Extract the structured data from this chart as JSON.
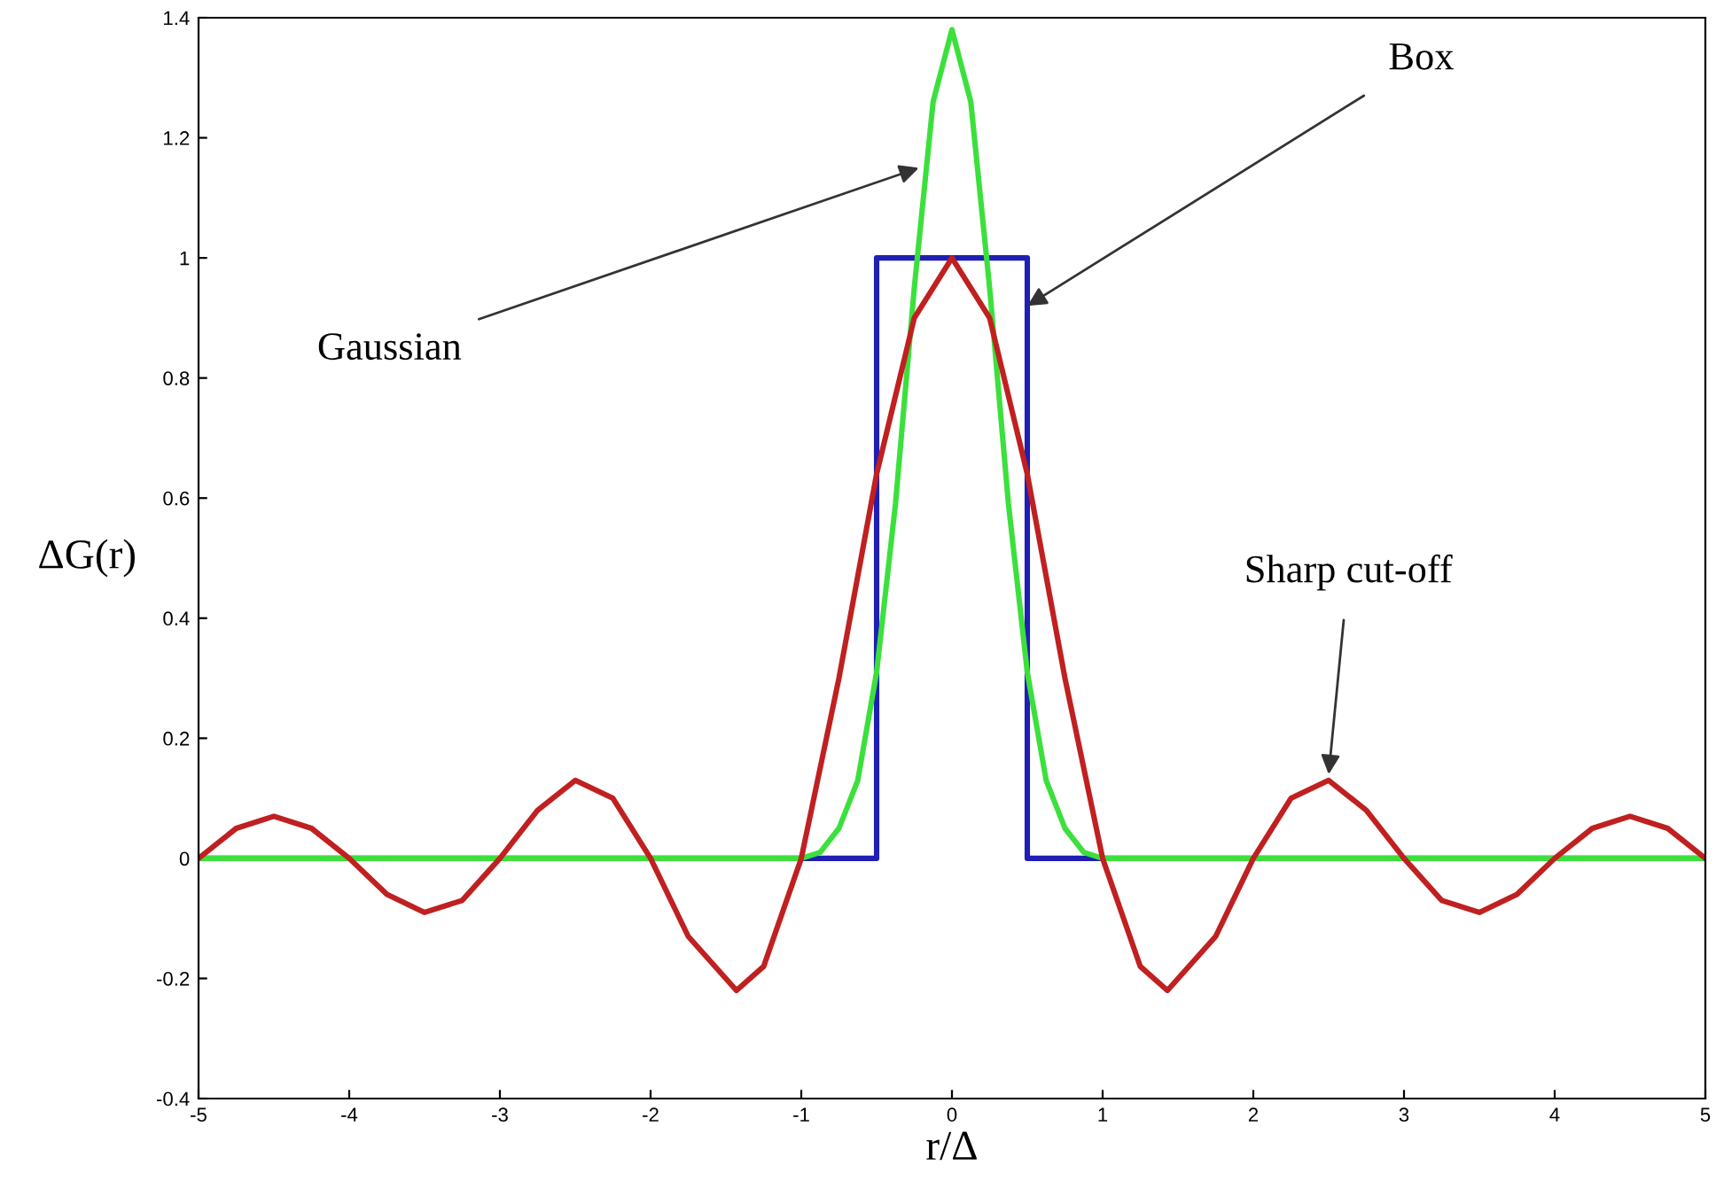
{
  "chart_data": {
    "type": "line",
    "xlabel": "r/Δ",
    "ylabel": "ΔG(r)",
    "xlim": [
      -5,
      5
    ],
    "xticks": [
      -5,
      -4,
      -3,
      -2,
      -1,
      0,
      1,
      2,
      3,
      4,
      5
    ],
    "ylim": [
      -0.4,
      1.4
    ],
    "yticks": [
      -0.4,
      -0.2,
      0,
      0.2,
      0.4,
      0.6,
      0.8,
      1,
      1.2,
      1.4
    ],
    "grid": false,
    "marker": "none",
    "line_style": "solid",
    "series": [
      {
        "type": "step",
        "color": "#1f1fb4",
        "x": [
          -5,
          -0.5,
          0.5,
          5
        ],
        "values": [
          0,
          1,
          0,
          0
        ]
      },
      {
        "color": "#3ce03c",
        "x": [
          -5,
          -1,
          -0.875,
          -0.75,
          -0.625,
          -0.5,
          -0.375,
          -0.25,
          -0.125,
          0,
          0.125,
          0.25,
          0.375,
          0.5,
          0.625,
          0.75,
          0.875,
          1,
          5
        ],
        "values": [
          0,
          0,
          0.01,
          0.05,
          0.13,
          0.31,
          0.59,
          0.95,
          1.26,
          1.38,
          1.26,
          0.95,
          0.59,
          0.31,
          0.13,
          0.05,
          0.01,
          0,
          0
        ]
      },
      {
        "color": "#c02020",
        "x": [
          -5,
          -4.75,
          -4.5,
          -4.25,
          -4,
          -3.75,
          -3.5,
          -3.25,
          -3,
          -2.75,
          -2.5,
          -2.25,
          -2,
          -1.75,
          -1.43,
          -1.25,
          -1,
          -0.75,
          -0.5,
          -0.25,
          0,
          0.25,
          0.5,
          0.75,
          1,
          1.25,
          1.43,
          1.75,
          2,
          2.25,
          2.5,
          2.75,
          3,
          3.25,
          3.5,
          3.75,
          4,
          4.25,
          4.5,
          4.75,
          5
        ],
        "values": [
          0,
          0.05,
          0.07,
          0.05,
          0,
          -0.06,
          -0.09,
          -0.07,
          0,
          0.08,
          0.13,
          0.1,
          0,
          -0.13,
          -0.22,
          -0.18,
          0,
          0.3,
          0.64,
          0.9,
          1,
          0.9,
          0.64,
          0.3,
          0,
          -0.18,
          -0.22,
          -0.13,
          0,
          0.1,
          0.13,
          0.08,
          0,
          -0.07,
          -0.09,
          -0.06,
          0,
          0.05,
          0.07,
          0.05,
          0
        ]
      }
    ],
    "annotations": [
      {
        "text": "Gaussian",
        "x": -0.22,
        "y": 1.15
      },
      {
        "text": "Box",
        "x": 0.5,
        "y": 0.92
      },
      {
        "text": "Sharp cut-off",
        "x": 2.5,
        "y": 0.14
      }
    ]
  }
}
